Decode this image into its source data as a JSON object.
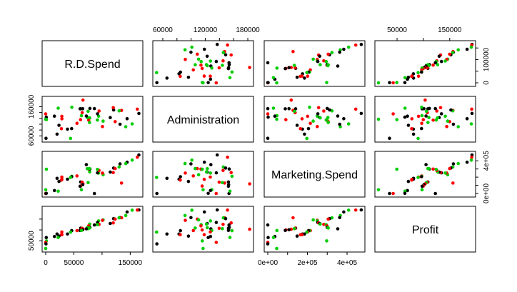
{
  "chart_data": {
    "type": "scatter-matrix",
    "variables": [
      "R.D.Spend",
      "Administration",
      "Marketing.Spend",
      "Profit"
    ],
    "group_colors": {
      "black": "#000000",
      "red": "#ff0000",
      "green": "#00cd00"
    },
    "axes": {
      "R.D.Spend": {
        "range": [
          0,
          166000
        ],
        "ticks": [
          0,
          50000,
          150000
        ],
        "tick_labels": [
          "0",
          "50000",
          "150000"
        ]
      },
      "Administration": {
        "range": [
          51000,
          183000
        ],
        "ticks": [
          60000,
          120000,
          180000
        ],
        "tick_labels": [
          "60000",
          "120000",
          "180000"
        ],
        "left_ticks": [
          60000,
          160000
        ],
        "left_tick_labels": [
          "60000",
          "160000"
        ]
      },
      "Marketing.Spend": {
        "range": [
          0,
          472000
        ],
        "ticks": [
          0,
          200000,
          400000
        ],
        "tick_labels": [
          "0e+00",
          "2e+05",
          "4e+05"
        ],
        "right_ticks": [
          0,
          400000
        ],
        "right_tick_labels": [
          "0e+00",
          "4e+05"
        ]
      },
      "Profit": {
        "range": [
          14700,
          192300
        ],
        "ticks": [
          50000,
          100000,
          150000
        ],
        "tick_labels": [
          "50000",
          "100000",
          "150000"
        ],
        "left_ticks": [
          50000
        ],
        "left_tick_labels": [
          "50000"
        ]
      }
    },
    "points": [
      {
        "g": "black",
        "rd": 165350,
        "adm": 136900,
        "mkt": 471800,
        "profit": 192300
      },
      {
        "g": "red",
        "rd": 162600,
        "adm": 151400,
        "mkt": 443900,
        "profit": 191800
      },
      {
        "g": "green",
        "rd": 153400,
        "adm": 101100,
        "mkt": 407900,
        "profit": 191000
      },
      {
        "g": "black",
        "rd": 144400,
        "adm": 118700,
        "mkt": 383200,
        "profit": 182900
      },
      {
        "g": "green",
        "rd": 142100,
        "adm": 91400,
        "mkt": 366200,
        "profit": 166200
      },
      {
        "g": "black",
        "rd": 131900,
        "adm": 99800,
        "mkt": 362900,
        "profit": 156900
      },
      {
        "g": "red",
        "rd": 134600,
        "adm": 147200,
        "mkt": 127700,
        "profit": 156100
      },
      {
        "g": "green",
        "rd": 130300,
        "adm": 145500,
        "mkt": 323900,
        "profit": 155800
      },
      {
        "g": "black",
        "rd": 120500,
        "adm": 148700,
        "mkt": 311600,
        "profit": 152200
      },
      {
        "g": "red",
        "rd": 123300,
        "adm": 108700,
        "mkt": 304900,
        "profit": 149800
      },
      {
        "g": "green",
        "rd": 101900,
        "adm": 110600,
        "mkt": 229200,
        "profit": 146100
      },
      {
        "g": "red",
        "rd": 100700,
        "adm": 91800,
        "mkt": 249700,
        "profit": 144300
      },
      {
        "g": "green",
        "rd": 93900,
        "adm": 127300,
        "mkt": 249800,
        "profit": 141600
      },
      {
        "g": "black",
        "rd": 91990,
        "adm": 135500,
        "mkt": 252700,
        "profit": 134300
      },
      {
        "g": "red",
        "rd": 119900,
        "adm": 156500,
        "mkt": 256500,
        "profit": 132600
      },
      {
        "g": "black",
        "rd": 114500,
        "adm": 122600,
        "mkt": 261800,
        "profit": 129900
      },
      {
        "g": "green",
        "rd": 78000,
        "adm": 121600,
        "mkt": 264300,
        "profit": 126900
      },
      {
        "g": "red",
        "rd": 94700,
        "adm": 145100,
        "mkt": 282600,
        "profit": 125400
      },
      {
        "g": "green",
        "rd": 91700,
        "adm": 114200,
        "mkt": 294900,
        "profit": 124300
      },
      {
        "g": "black",
        "rd": 86400,
        "adm": 153500,
        "mkt": 0,
        "profit": 122800
      },
      {
        "g": "red",
        "rd": 76300,
        "adm": 113900,
        "mkt": 298700,
        "profit": 118500
      },
      {
        "g": "black",
        "rd": 78400,
        "adm": 153800,
        "mkt": 299700,
        "profit": 111300
      },
      {
        "g": "green",
        "rd": 73900,
        "adm": 122800,
        "mkt": 303300,
        "profit": 110400
      },
      {
        "g": "green",
        "rd": 77800,
        "adm": 105800,
        "mkt": 304800,
        "profit": 108700
      },
      {
        "g": "black",
        "rd": 62000,
        "adm": 152700,
        "mkt": 140500,
        "profit": 108500
      },
      {
        "g": "red",
        "rd": 64700,
        "adm": 139600,
        "mkt": 137900,
        "profit": 107400
      },
      {
        "g": "green",
        "rd": 75300,
        "adm": 144100,
        "mkt": 134100,
        "profit": 105700
      },
      {
        "g": "black",
        "rd": 72100,
        "adm": 127900,
        "mkt": 353200,
        "profit": 105000
      },
      {
        "g": "red",
        "rd": 66100,
        "adm": 182600,
        "mkt": 118100,
        "profit": 103300
      },
      {
        "g": "black",
        "rd": 65600,
        "adm": 153000,
        "mkt": 107100,
        "profit": 101000
      },
      {
        "g": "red",
        "rd": 61900,
        "adm": 115600,
        "mkt": 91100,
        "profit": 99900
      },
      {
        "g": "black",
        "rd": 61100,
        "adm": 152700,
        "mkt": 88200,
        "profit": 97500
      },
      {
        "g": "green",
        "rd": 63400,
        "adm": 129200,
        "mkt": 46100,
        "profit": 97400
      },
      {
        "g": "red",
        "rd": 55500,
        "adm": 103100,
        "mkt": 214600,
        "profit": 96800
      },
      {
        "g": "green",
        "rd": 46400,
        "adm": 157700,
        "mkt": 210800,
        "profit": 96700
      },
      {
        "g": "black",
        "rd": 46000,
        "adm": 85000,
        "mkt": 205500,
        "profit": 96500
      },
      {
        "g": "red",
        "rd": 28700,
        "adm": 127100,
        "mkt": 201100,
        "profit": 90700
      },
      {
        "g": "green",
        "rd": 44100,
        "adm": 51300,
        "mkt": 197000,
        "profit": 89900
      },
      {
        "g": "black",
        "rd": 20200,
        "adm": 65900,
        "mkt": 185300,
        "profit": 81200
      },
      {
        "g": "black",
        "rd": 38600,
        "adm": 82900,
        "mkt": 174999,
        "profit": 81000
      },
      {
        "g": "red",
        "rd": 28800,
        "adm": 118500,
        "mkt": 172800,
        "profit": 78200
      },
      {
        "g": "red",
        "rd": 27900,
        "adm": 84700,
        "mkt": 164500,
        "profit": 77800
      },
      {
        "g": "black",
        "rd": 23600,
        "adm": 96200,
        "mkt": 148000,
        "profit": 71500
      },
      {
        "g": "black",
        "rd": 15500,
        "adm": 127400,
        "mkt": 35500,
        "profit": 69800
      },
      {
        "g": "green",
        "rd": 22200,
        "adm": 154800,
        "mkt": 28300,
        "profit": 65200
      },
      {
        "g": "black",
        "rd": 1000,
        "adm": 124200,
        "mkt": 1900,
        "profit": 64900
      },
      {
        "g": "green",
        "rd": 1300,
        "adm": 115800,
        "mkt": 297100,
        "profit": 49500
      },
      {
        "g": "red",
        "rd": 0,
        "adm": 135400,
        "mkt": 0,
        "profit": 42600
      },
      {
        "g": "black",
        "rd": 500,
        "adm": 51700,
        "mkt": 0,
        "profit": 35700
      },
      {
        "g": "green",
        "rd": 0,
        "adm": 116900,
        "mkt": 45200,
        "profit": 14700
      }
    ]
  }
}
